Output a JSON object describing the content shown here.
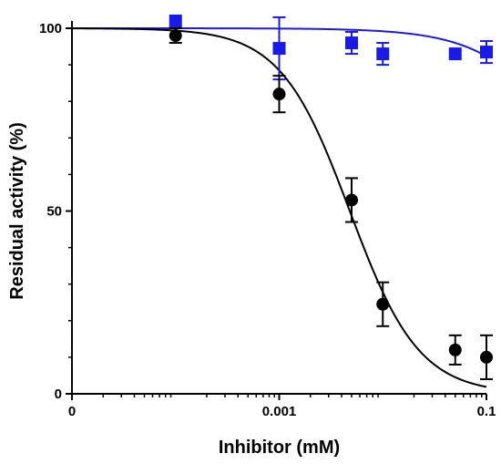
{
  "chart_data": {
    "type": "scatter",
    "xlabel": "Inhibitor (mM)",
    "ylabel": "Residual activity (%)",
    "x_scale": "log",
    "x_ticks": [
      {
        "value": 0,
        "label": "0"
      },
      {
        "value": 0.001,
        "label": "0.001"
      },
      {
        "value": 0.1,
        "label": "0.1"
      }
    ],
    "x_range_log10": [
      -5,
      -1
    ],
    "y_ticks": [
      0,
      50,
      100
    ],
    "ylim": [
      0,
      100
    ],
    "grid": false,
    "legend": "none",
    "series": [
      {
        "color": "#1a1ae6",
        "marker": "square",
        "points": [
          {
            "x": 0.0001,
            "y": 102,
            "err": 0
          },
          {
            "x": 0.001,
            "y": 94.5,
            "err": 8.5
          },
          {
            "x": 0.005,
            "y": 96,
            "err": 3
          },
          {
            "x": 0.01,
            "y": 93,
            "err": 3
          },
          {
            "x": 0.05,
            "y": 93,
            "err": 0
          },
          {
            "x": 0.1,
            "y": 93.5,
            "err": 3
          }
        ],
        "fit": {
          "top": 100,
          "bottom": 0,
          "ic50": 1.2,
          "hill": 1
        }
      },
      {
        "color": "#000000",
        "marker": "circle",
        "points": [
          {
            "x": 0.0001,
            "y": 98,
            "err": 2
          },
          {
            "x": 0.001,
            "y": 82,
            "err": 5
          },
          {
            "x": 0.005,
            "y": 53,
            "err": 6
          },
          {
            "x": 0.01,
            "y": 24.5,
            "err": 6
          },
          {
            "x": 0.05,
            "y": 12,
            "err": 4
          },
          {
            "x": 0.1,
            "y": 10,
            "err": 6
          }
        ],
        "fit": {
          "top": 100,
          "bottom": 0,
          "ic50": 0.0048,
          "hill": 1.3
        }
      }
    ]
  }
}
